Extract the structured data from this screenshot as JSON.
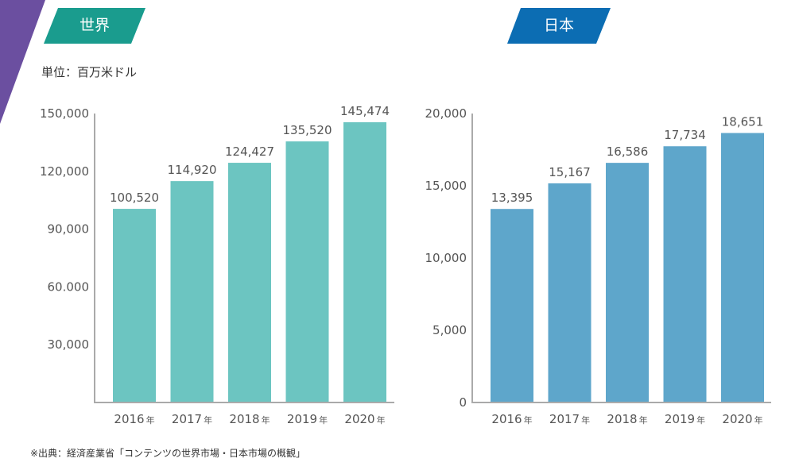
{
  "colors": {
    "decoration": "#6b4fa0",
    "world_tag": "#1a9c8e",
    "japan_tag": "#0c6db3",
    "world_bar": "#6cc5c1",
    "japan_bar": "#5ea6cb",
    "axis": "#aaaaaa",
    "text": "#555555"
  },
  "unit_label": "単位：百万米ドル",
  "source_note": "※出典：経済産業省「コンテンツの世界市場・日本市場の概観」",
  "chart_data": [
    {
      "type": "bar",
      "title": "世界",
      "xlabel": "",
      "ylabel": "単位：百万米ドル",
      "categories": [
        "2016",
        "2017",
        "2018",
        "2019",
        "2020"
      ],
      "category_suffix": "年",
      "values": [
        100520,
        114920,
        124427,
        135520,
        145474
      ],
      "data_labels": [
        "100,520",
        "114,920",
        "124,427",
        "135,520",
        "145,474"
      ],
      "ylim": [
        0,
        150000
      ],
      "yticks": [
        30000,
        60000,
        90000,
        120000,
        150000
      ],
      "ytick_labels": [
        "30,000",
        "60.000",
        "90,000",
        "120,000",
        "150,000"
      ],
      "grid": false,
      "legend": "none"
    },
    {
      "type": "bar",
      "title": "日本",
      "xlabel": "",
      "ylabel": "",
      "categories": [
        "2016",
        "2017",
        "2018",
        "2019",
        "2020"
      ],
      "category_suffix": "年",
      "values": [
        13395,
        15167,
        16586,
        17734,
        18651
      ],
      "data_labels": [
        "13,395",
        "15,167",
        "16,586",
        "17,734",
        "18,651"
      ],
      "ylim": [
        0,
        20000
      ],
      "yticks": [
        0,
        5000,
        10000,
        15000,
        20000
      ],
      "ytick_labels": [
        "0",
        "5,000",
        "10,000",
        "15,000",
        "20,000"
      ],
      "grid": false,
      "legend": "none"
    }
  ]
}
